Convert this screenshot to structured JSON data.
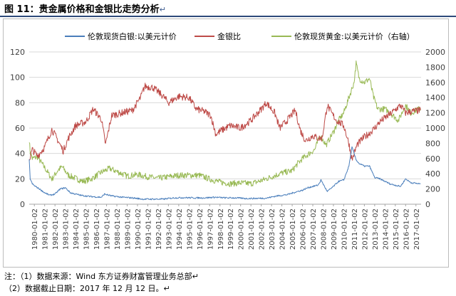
{
  "page": {
    "title": "图 11：贵金属价格和金银比走势分析",
    "title_mark": "↵",
    "note1": "注：（1）数据来源：Wind  东方证券财富管理业务总部↵",
    "note2": "（2）数据截止日期：2017 年 12 月 12 日。↵"
  },
  "colors": {
    "silver": "#4a7ebb",
    "ratio": "#be4b48",
    "gold": "#98b954",
    "grid": "#d9d9d9",
    "header_rule": "#2e4a7a"
  },
  "chart_data": {
    "type": "line",
    "legend_position": "top",
    "grid": true,
    "y_left": {
      "ylim": [
        0,
        120
      ],
      "ticks": [
        "0",
        "20",
        "40",
        "60",
        "80",
        "100",
        "120"
      ]
    },
    "y_right": {
      "ylim": [
        0,
        2000
      ],
      "ticks": [
        "0",
        "200",
        "400",
        "600",
        "800",
        "1000",
        "1200",
        "1400",
        "1600",
        "1800",
        "2000"
      ]
    },
    "x_ticks": [
      "1980-01-02",
      "1981-01-02",
      "1982-01-02",
      "1983-01-02",
      "1984-01-02",
      "1985-01-02",
      "1986-01-02",
      "1987-01-02",
      "1988-01-02",
      "1989-01-02",
      "1990-01-02",
      "1991-01-02",
      "1992-01-02",
      "1993-01-02",
      "1994-01-02",
      "1995-01-02",
      "1996-01-02",
      "1997-01-02",
      "1998-01-02",
      "1999-01-02",
      "2000-01-02",
      "2001-01-02",
      "2002-01-02",
      "2003-01-02",
      "2004-01-02",
      "2005-01-02",
      "2006-01-02",
      "2007-01-02",
      "2008-01-02",
      "2009-01-02",
      "2010-01-02",
      "2011-01-02",
      "2012-01-02",
      "2013-01-02",
      "2014-01-02",
      "2015-01-02",
      "2016-01-02",
      "2017-01-02"
    ],
    "series": [
      {
        "name": "伦敦现货白银:以美元计价",
        "axis": "left",
        "color": "#4a7ebb",
        "x": [
          1980.0,
          1980.1,
          1980.3,
          1980.6,
          1981.0,
          1981.5,
          1982.0,
          1982.5,
          1983.0,
          1983.5,
          1984.0,
          1985.0,
          1986.0,
          1987.0,
          1987.3,
          1988.0,
          1989.0,
          1990.0,
          1991.0,
          1992.0,
          1993.0,
          1994.0,
          1995.0,
          1996.0,
          1997.0,
          1998.0,
          1999.0,
          2000.0,
          2001.0,
          2002.0,
          2003.0,
          2004.0,
          2005.0,
          2006.0,
          2006.5,
          2007.0,
          2008.0,
          2008.3,
          2008.9,
          2009.5,
          2010.0,
          2010.5,
          2011.0,
          2011.3,
          2011.7,
          2012.0,
          2012.5,
          2013.0,
          2013.5,
          2014.0,
          2015.0,
          2016.0,
          2016.5,
          2017.0,
          2017.95
        ],
        "values": [
          35,
          20,
          16,
          14,
          12,
          9,
          7,
          8,
          12,
          13,
          9,
          7,
          6,
          5.5,
          8,
          6.5,
          5.5,
          5,
          4,
          4,
          4,
          5,
          5.2,
          5,
          5,
          5.5,
          5,
          5,
          4.5,
          4.6,
          4.8,
          6.5,
          7.5,
          10,
          11,
          13,
          15,
          19,
          10,
          14,
          18,
          19,
          30,
          45,
          35,
          32,
          30,
          30,
          21,
          20,
          16,
          14,
          20,
          17,
          16
        ]
      },
      {
        "name": "金银比",
        "axis": "left",
        "color": "#be4b48",
        "x": [
          1980.0,
          1980.3,
          1980.8,
          1981.5,
          1982.2,
          1982.8,
          1983.3,
          1983.8,
          1984.5,
          1985.5,
          1986.2,
          1987.0,
          1987.4,
          1988.0,
          1989.0,
          1990.0,
          1990.8,
          1991.2,
          1992.0,
          1993.0,
          1993.5,
          1994.5,
          1995.5,
          1996.2,
          1997.0,
          1997.6,
          1998.1,
          1998.6,
          1999.5,
          2000.5,
          2001.5,
          2002.5,
          2003.0,
          2003.8,
          2004.3,
          2005.0,
          2005.8,
          2006.3,
          2006.8,
          2007.5,
          2008.0,
          2008.4,
          2008.9,
          2009.3,
          2009.8,
          2010.5,
          2011.0,
          2011.3,
          2011.8,
          2012.5,
          2013.0,
          2013.5,
          2014.0,
          2015.0,
          2016.0,
          2016.5,
          2017.0,
          2017.95
        ],
        "values": [
          35,
          43,
          38,
          45,
          59,
          50,
          42,
          52,
          62,
          65,
          75,
          67,
          47,
          70,
          72,
          74,
          84,
          93,
          92,
          85,
          80,
          85,
          84,
          75,
          73,
          70,
          55,
          58,
          62,
          60,
          66,
          75,
          80,
          72,
          60,
          66,
          74,
          58,
          50,
          54,
          52,
          52,
          78,
          72,
          66,
          62,
          48,
          35,
          47,
          53,
          56,
          60,
          65,
          71,
          78,
          72,
          73,
          74
        ]
      },
      {
        "name": "伦敦现货黄金:以美元计价（右轴）",
        "axis": "right",
        "color": "#98b954",
        "x": [
          1980.0,
          1980.1,
          1980.3,
          1980.8,
          1981.5,
          1982.2,
          1982.8,
          1983.2,
          1983.8,
          1984.5,
          1985.2,
          1986.0,
          1987.0,
          1987.8,
          1988.5,
          1989.5,
          1990.5,
          1991.5,
          1992.5,
          1993.5,
          1994.5,
          1995.5,
          1996.5,
          1997.5,
          1998.5,
          1999.5,
          2000.5,
          2001.5,
          2002.5,
          2003.5,
          2004.5,
          2005.5,
          2006.0,
          2006.5,
          2007.0,
          2007.7,
          2008.2,
          2008.8,
          2009.5,
          2010.0,
          2010.5,
          2011.0,
          2011.5,
          2011.7,
          2012.0,
          2012.5,
          2013.0,
          2013.4,
          2013.8,
          2014.5,
          2015.0,
          2015.8,
          2016.5,
          2017.0,
          2017.95
        ],
        "values": [
          850,
          680,
          600,
          620,
          480,
          330,
          450,
          490,
          380,
          340,
          300,
          330,
          420,
          470,
          430,
          370,
          390,
          360,
          340,
          360,
          380,
          380,
          380,
          330,
          290,
          270,
          280,
          270,
          310,
          360,
          410,
          440,
          530,
          600,
          650,
          720,
          900,
          780,
          950,
          1100,
          1200,
          1400,
          1600,
          1850,
          1650,
          1600,
          1650,
          1400,
          1250,
          1250,
          1200,
          1100,
          1300,
          1200,
          1260
        ]
      }
    ]
  }
}
